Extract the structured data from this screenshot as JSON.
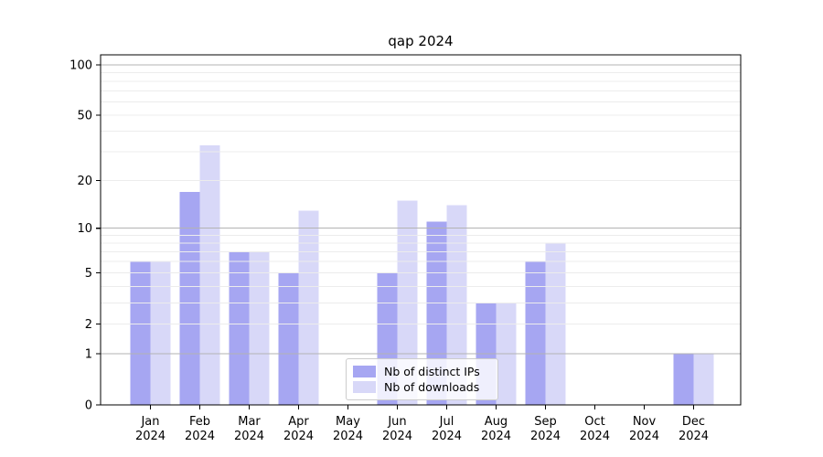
{
  "figure": {
    "title": "qap 2024"
  },
  "legend": {
    "items": [
      {
        "label": "Nb of distinct IPs",
        "series": 0
      },
      {
        "label": "Nb of downloads",
        "series": 1
      }
    ],
    "position": "lower center"
  },
  "colors": {
    "distinct_ips": "#a6a6f2",
    "downloads": "#d8d8f8",
    "grid_major": "#b3b3b3",
    "grid_minor": "#ececec",
    "axis": "#000000",
    "background": "#ffffff"
  },
  "chart_data": {
    "type": "bar",
    "title": "qap 2024",
    "categories": [
      "Jan 2024",
      "Feb 2024",
      "Mar 2024",
      "Apr 2024",
      "May 2024",
      "Jun 2024",
      "Jul 2024",
      "Aug 2024",
      "Sep 2024",
      "Oct 2024",
      "Nov 2024",
      "Dec 2024"
    ],
    "series": [
      {
        "name": "Nb of distinct IPs",
        "color": "#a6a6f2",
        "values": [
          6,
          17,
          7,
          5,
          0,
          5,
          11,
          3,
          6,
          0,
          0,
          1
        ]
      },
      {
        "name": "Nb of downloads",
        "color": "#d8d8f8",
        "values": [
          6,
          33,
          7,
          13,
          0,
          15,
          14,
          3,
          8,
          0,
          0,
          1
        ]
      }
    ],
    "yscale": "log10(v+1)",
    "ylim": [
      0,
      100
    ],
    "yticks": [
      0,
      1,
      2,
      5,
      10,
      20,
      50,
      100
    ],
    "major_gridlines": [
      1,
      10,
      100
    ],
    "minor_gridlines": [
      2,
      3,
      4,
      5,
      6,
      7,
      8,
      9,
      20,
      30,
      40,
      50,
      60,
      70,
      80,
      90
    ],
    "grid": true,
    "legend_position": "lower center"
  }
}
